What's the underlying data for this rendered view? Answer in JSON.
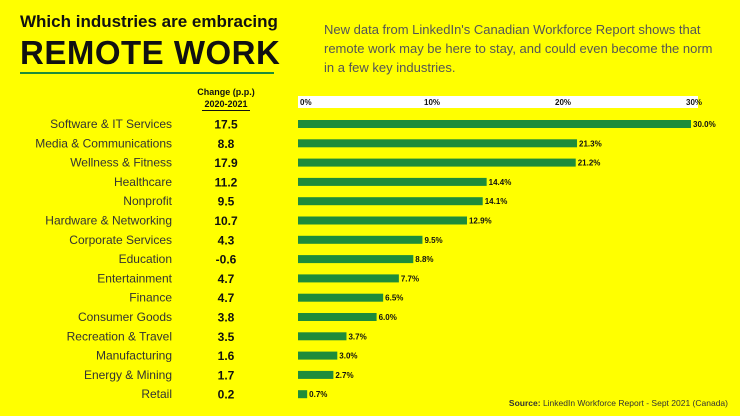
{
  "header": {
    "title_line1": "Which industries are embracing",
    "title_line2": "REMOTE WORK",
    "subtitle": "New data from LinkedIn's Canadian Workforce Report shows that remote work may be here to stay, and could even become the norm in a few key industries."
  },
  "change_column": {
    "header_line1": "Change (p.p.)",
    "header_line2": "2020-2021"
  },
  "source": {
    "label": "Source:",
    "text": "LinkedIn Workforce Report - Sept 2021 (Canada)"
  },
  "colors": {
    "background": "#ffff00",
    "bar": "#1e8c3a",
    "axis_strip": "#ffffff"
  },
  "chart_data": {
    "type": "bar",
    "orientation": "horizontal",
    "title": "Which industries are embracing REMOTE WORK",
    "xlim": [
      0,
      30
    ],
    "ticks": [
      {
        "value": 0,
        "label": "0%"
      },
      {
        "value": 10,
        "label": "10%"
      },
      {
        "value": 20,
        "label": "20%"
      },
      {
        "value": 30,
        "label": "30%"
      }
    ],
    "grid": false,
    "categories": [
      "Software & IT Services",
      "Media & Communications",
      "Wellness & Fitness",
      "Healthcare",
      "Nonprofit",
      "Hardware & Networking",
      "Corporate Services",
      "Education",
      "Entertainment",
      "Finance",
      "Consumer Goods",
      "Recreation & Travel",
      "Manufacturing",
      "Energy & Mining",
      "Retail"
    ],
    "values": [
      30.0,
      21.3,
      21.2,
      14.4,
      14.1,
      12.9,
      9.5,
      8.8,
      7.7,
      6.5,
      6.0,
      3.7,
      3.0,
      2.7,
      0.7
    ],
    "value_labels": [
      "30.0%",
      "21.3%",
      "21.2%",
      "14.4%",
      "14.1%",
      "12.9%",
      "9.5%",
      "8.8%",
      "7.7%",
      "6.5%",
      "6.0%",
      "3.7%",
      "3.0%",
      "2.7%",
      "0.7%"
    ],
    "change_pp": [
      "17.5",
      "8.8",
      "17.9",
      "11.2",
      "9.5",
      "10.7",
      "4.3",
      "-0.6",
      "4.7",
      "4.7",
      "3.8",
      "3.5",
      "1.6",
      "1.7",
      "0.2"
    ]
  }
}
